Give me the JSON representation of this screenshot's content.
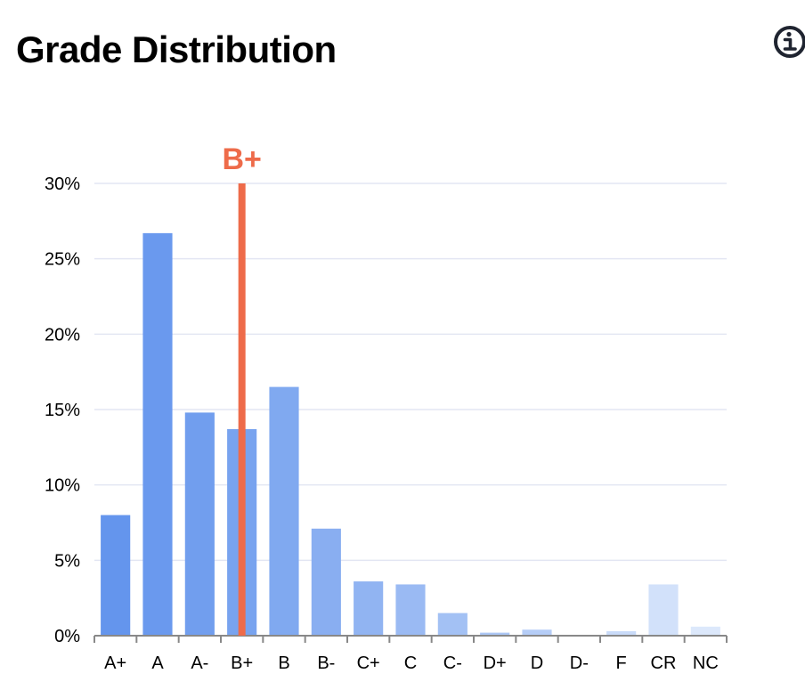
{
  "header": {
    "title": "Grade Distribution",
    "info_icon": "info-circle-icon"
  },
  "colors": {
    "bar_start": "#6495ed",
    "bar_end": "#dce8fb",
    "marker": "#ee6b4a",
    "grid": "#e3e6f3",
    "axis": "#888888"
  },
  "chart_data": {
    "type": "bar",
    "title": "Grade Distribution",
    "xlabel": "",
    "ylabel": "",
    "categories": [
      "A+",
      "A",
      "A-",
      "B+",
      "B",
      "B-",
      "C+",
      "C",
      "C-",
      "D+",
      "D",
      "D-",
      "F",
      "CR",
      "NC"
    ],
    "values": [
      8.0,
      26.7,
      14.8,
      13.7,
      16.5,
      7.1,
      3.6,
      3.4,
      1.5,
      0.2,
      0.4,
      0.0,
      0.3,
      3.4,
      0.6
    ],
    "ylim": [
      0,
      30
    ],
    "yticks": [
      0,
      5,
      10,
      15,
      20,
      25,
      30
    ],
    "ytick_labels": [
      "0%",
      "5%",
      "10%",
      "15%",
      "20%",
      "25%",
      "30%"
    ],
    "grid": true,
    "legend": "none",
    "marker": {
      "category": "B+",
      "label": "B+"
    }
  }
}
